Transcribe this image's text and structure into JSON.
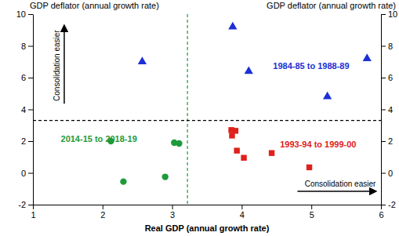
{
  "chart_data": {
    "type": "scatter",
    "x_label": "Real GDP (annual growth rate)",
    "y_label": "GDP deflator (annual growth rate)",
    "y2_label": "GDP deflator (annual growth rate)",
    "xlim": [
      1,
      6
    ],
    "xticks": [
      1,
      2,
      3,
      4,
      5,
      6
    ],
    "ylim": [
      -2,
      10
    ],
    "yticks": [
      -2,
      0,
      2,
      4,
      6,
      8,
      10
    ],
    "y2lim": [
      -2,
      10
    ],
    "y2ticks": [
      -2,
      0,
      2,
      4,
      6,
      8,
      10
    ],
    "series": [
      {
        "name": "1984-85 to 1988-89",
        "color": "#1c2fd6",
        "marker": "triangle",
        "x": [
          2.57,
          3.87,
          4.1,
          5.23,
          5.8
        ],
        "values": [
          7.0,
          9.2,
          6.4,
          4.8,
          7.2
        ]
      },
      {
        "name": "1993-94 to 1999-00",
        "color": "#e0201a",
        "marker": "square",
        "x": [
          3.85,
          3.91,
          3.86,
          3.93,
          4.03,
          4.43,
          4.97
        ],
        "values": [
          2.7,
          2.65,
          2.35,
          1.4,
          0.95,
          1.25,
          0.35
        ]
      },
      {
        "name": "2014-15 to 2018-19",
        "color": "#1e9a3a",
        "marker": "circle",
        "x": [
          2.12,
          2.3,
          2.9,
          3.03,
          3.1
        ],
        "values": [
          2.0,
          -0.55,
          -0.25,
          1.9,
          1.85
        ]
      }
    ],
    "reference_lines": [
      {
        "axis": "x",
        "value": 3.22,
        "color": "#1e9a3a",
        "line_style": "dashed"
      },
      {
        "axis": "y",
        "value": 3.3,
        "color": "#000000",
        "line_style": "dashed"
      }
    ],
    "annotations": [
      "Consolidation easier",
      "Consolidation easier"
    ]
  }
}
